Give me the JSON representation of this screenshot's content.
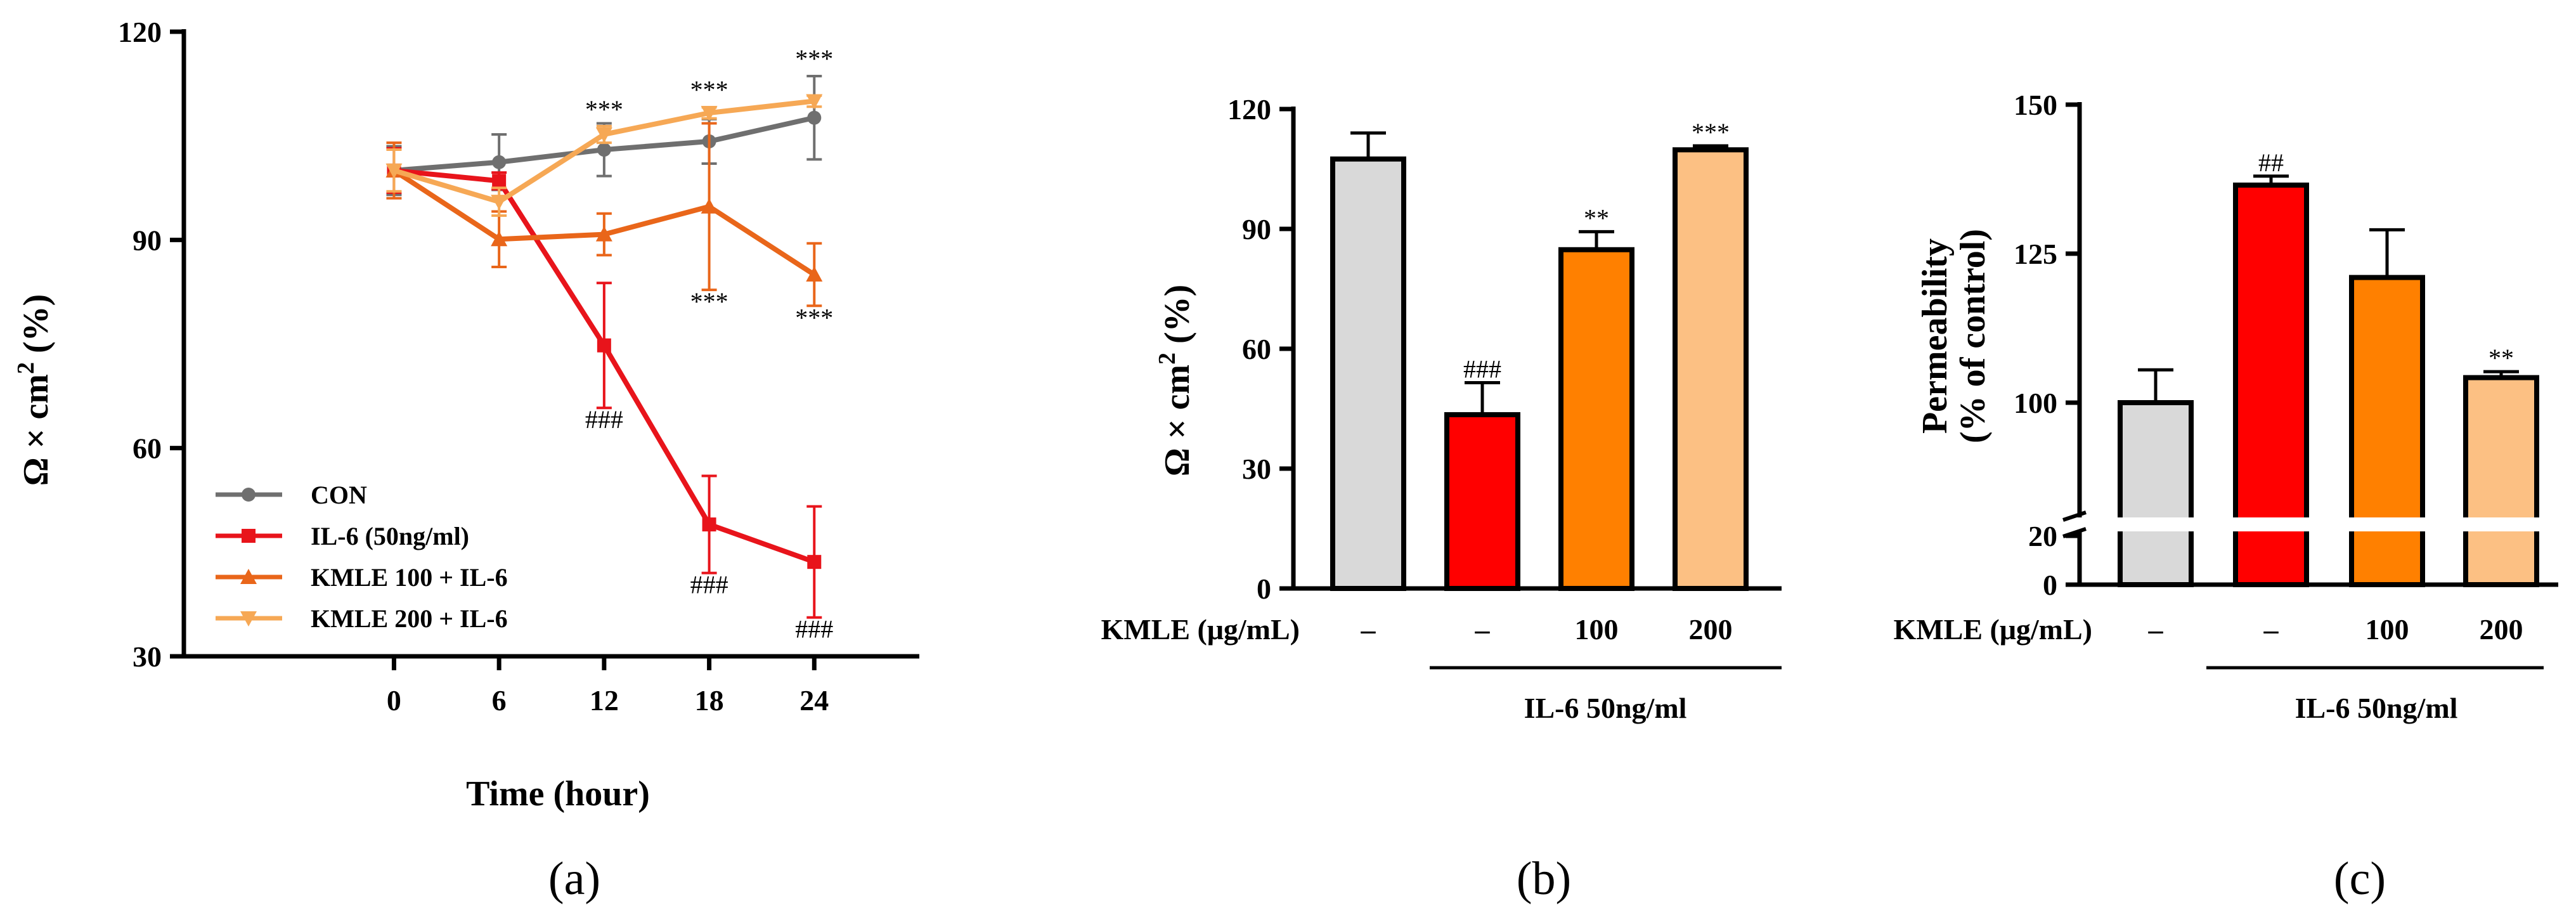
{
  "chart_data": [
    {
      "type": "line",
      "panel_label": "(a)",
      "xlabel": "Time (hour)",
      "ylabel_main": "Ω × cm",
      "ylabel_sup": "2",
      "ylabel_suffix": " (%)",
      "x": [
        0,
        6,
        12,
        18,
        24
      ],
      "x_tick_labels": [
        "0",
        "6",
        "12",
        "18",
        "24"
      ],
      "xlim": [
        -12,
        30
      ],
      "ylim": [
        30,
        120
      ],
      "y_ticks": [
        30,
        60,
        90,
        120
      ],
      "y_tick_labels": [
        "30",
        "60",
        "90",
        "120"
      ],
      "legend_position": "lower-left",
      "series": [
        {
          "name": "CON",
          "color": "#6f6f6f",
          "marker": "circle",
          "values": [
            100,
            101.2,
            103,
            104.2,
            107.6
          ],
          "errors": [
            3.5,
            4.0,
            3.8,
            3.2,
            6.0
          ]
        },
        {
          "name": "IL-6 (50ng/ml)",
          "color": "#e8141b",
          "marker": "square",
          "values": [
            100,
            98.5,
            74.8,
            49,
            43.6
          ],
          "errors": [
            3.2,
            1.2,
            9.0,
            7.0,
            8.0
          ]
        },
        {
          "name": "KMLE 100 + IL-6",
          "color": "#e9661a",
          "marker": "triangle",
          "values": [
            100,
            90.1,
            90.8,
            94.8,
            85
          ],
          "errors": [
            4.0,
            4.0,
            3.0,
            12.0,
            4.5
          ]
        },
        {
          "name": "KMLE 200 + IL-6",
          "color": "#f6a855",
          "marker": "triangle-down",
          "values": [
            100,
            95.5,
            105.2,
            108.3,
            110
          ],
          "errors": [
            3.0,
            2.0,
            1.2,
            0.8,
            0.8
          ]
        }
      ],
      "annotations": [
        {
          "text": "***",
          "x": 12,
          "y": 106.5,
          "pos": "above"
        },
        {
          "text": "***",
          "x": 18,
          "y": 109.3,
          "pos": "above"
        },
        {
          "text": "***",
          "x": 24,
          "y": 113.8,
          "pos": "above"
        },
        {
          "text": "###",
          "x": 12,
          "y": 65.8,
          "pos": "below"
        },
        {
          "text": "###",
          "x": 18,
          "y": 42,
          "pos": "below"
        },
        {
          "text": "###",
          "x": 24,
          "y": 35.6,
          "pos": "below"
        },
        {
          "text": "***",
          "x": 18,
          "y": 82.8,
          "pos": "below"
        },
        {
          "text": "***",
          "x": 24,
          "y": 80.5,
          "pos": "below"
        }
      ]
    },
    {
      "type": "bar",
      "panel_label": "(b)",
      "ylabel_main": "Ω × cm",
      "ylabel_sup": "2",
      "ylabel_suffix": " (%)",
      "categories": [
        "–",
        "–",
        "100",
        "200"
      ],
      "row_label": "KMLE (μg/mL)",
      "group_label": "IL-6 50ng/ml",
      "values": [
        107.5,
        43.5,
        84.8,
        109.8
      ],
      "errors": [
        6.5,
        8.0,
        4.5,
        1.0
      ],
      "colors": [
        "#d9d9d9",
        "#ff0000",
        "#ff8000",
        "#fcc083"
      ],
      "labels": [
        "",
        "###",
        "**",
        "***"
      ],
      "ylim": [
        0,
        120
      ],
      "y_ticks": [
        0,
        30,
        60,
        90,
        120
      ],
      "y_tick_labels": [
        "0",
        "30",
        "60",
        "90",
        "120"
      ]
    },
    {
      "type": "bar",
      "panel_label": "(c)",
      "ylabel_line1": "Permeability",
      "ylabel_line2": "(% of control)",
      "categories": [
        "–",
        "–",
        "100",
        "200"
      ],
      "row_label": "KMLE (μg/mL)",
      "group_label": "IL-6 50ng/ml",
      "values": [
        100,
        136.5,
        121,
        104.2
      ],
      "errors": [
        5.5,
        1.5,
        8.0,
        1.0
      ],
      "colors": [
        "#d9d9d9",
        "#ff0000",
        "#ff8000",
        "#fcc083"
      ],
      "labels": [
        "",
        "##",
        "",
        "**"
      ],
      "ylim": [
        0,
        150
      ],
      "axis_break": [
        20,
        80
      ],
      "y_ticks": [
        0,
        20,
        100,
        125,
        150
      ],
      "y_tick_labels": [
        "0",
        "20",
        "100",
        "125",
        "150"
      ]
    }
  ]
}
